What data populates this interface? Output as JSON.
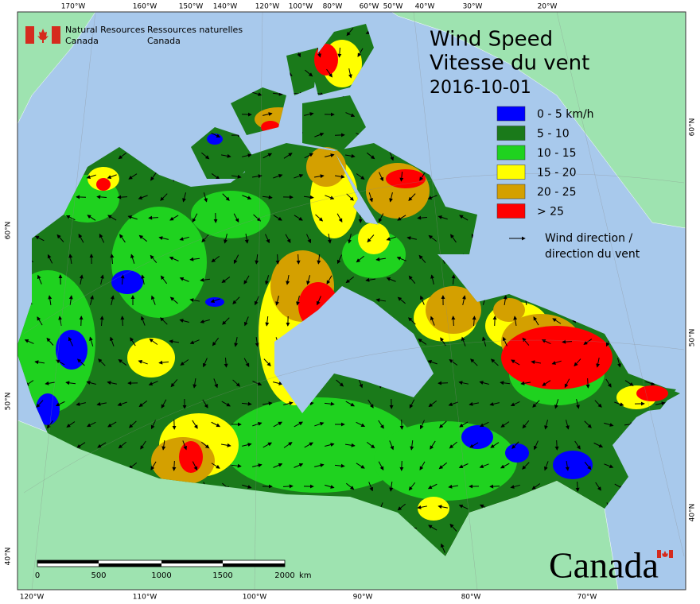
{
  "agency": {
    "en_line1": "Natural Resources",
    "en_line2": "Canada",
    "fr_line1": "Ressources naturelles",
    "fr_line2": "Canada"
  },
  "title": {
    "en": "Wind Speed",
    "fr": "Vitesse du vent",
    "date": "2016-10-01"
  },
  "legend": {
    "items": [
      {
        "label": "0 - 5 km/h",
        "color": "#0000ff"
      },
      {
        "label": "5 - 10",
        "color": "#1a7a1a"
      },
      {
        "label": "10 - 15",
        "color": "#1fd21f"
      },
      {
        "label": "15 - 20",
        "color": "#ffff00"
      },
      {
        "label": "20 - 25",
        "color": "#d4a000"
      },
      {
        "label": "> 25",
        "color": "#ff0000"
      }
    ],
    "arrow_label": [
      "Wind direction /",
      "direction du vent"
    ]
  },
  "graticule": {
    "top": [
      "170°W",
      "160°W",
      "150°W",
      "140°W",
      "120°W",
      "100°W",
      "80°W",
      "60°W",
      "50°W",
      "40°W",
      "30°W",
      "20°W"
    ],
    "bottom": [
      "120°W",
      "110°W",
      "100°W",
      "90°W",
      "80°W",
      "70°W"
    ],
    "left": [
      "60°N",
      "50°N",
      "40°N"
    ],
    "right": [
      "60°N",
      "50°N",
      "40°N"
    ]
  },
  "scale_bar": {
    "labels": [
      "0",
      "500",
      "1000",
      "1500",
      "2000"
    ],
    "unit": "km"
  },
  "wordmark": "Canada"
}
